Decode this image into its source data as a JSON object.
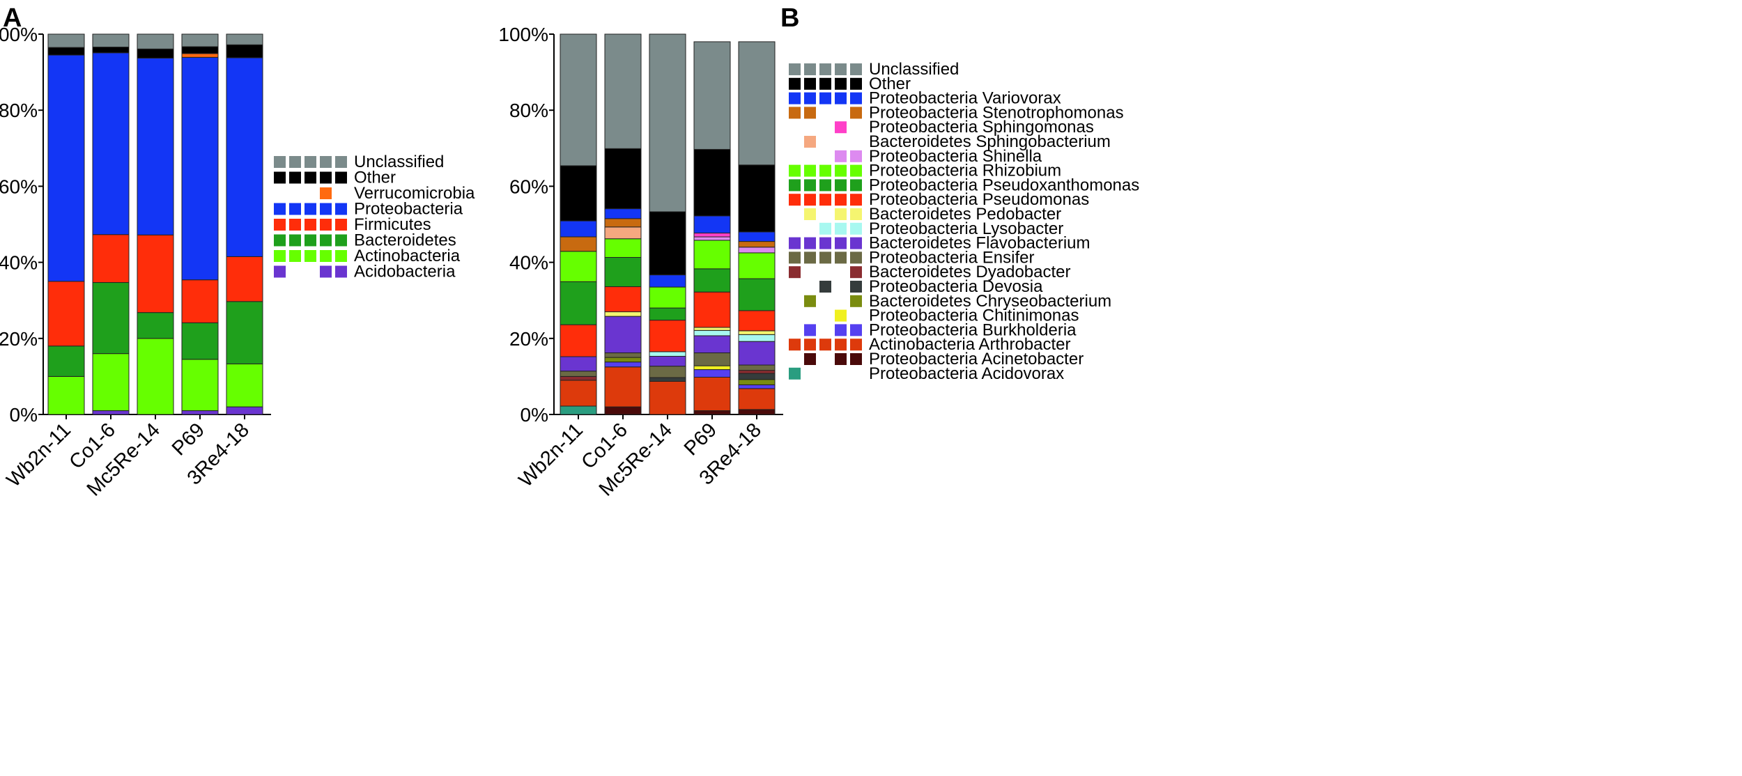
{
  "chart_data": [
    {
      "panel": "A",
      "type": "bar",
      "stacked": true,
      "title": "",
      "xlabel": "",
      "ylabel": "",
      "ylim": [
        0,
        100
      ],
      "y_ticks": [
        "0%",
        "20%",
        "40%",
        "60%",
        "80%",
        "100%"
      ],
      "categories": [
        "Wb2n-11",
        "Co1-6",
        "Mc5Re-14",
        "P69",
        "3Re4-18"
      ],
      "legend_position": "right",
      "legend_order": [
        "Unclassified",
        "Other",
        "Verrucomicrobia",
        "Proteobacteria",
        "Firmicutes",
        "Bacteroidetes",
        "Actinobacteria",
        "Acidobacteria"
      ],
      "series": [
        {
          "name": "Acidobacteria",
          "color": "#6a35d0",
          "values": [
            0,
            1,
            0,
            1,
            2
          ]
        },
        {
          "name": "Actinobacteria",
          "color": "#66ff00",
          "values": [
            10,
            15,
            20,
            13.5,
            11.3
          ]
        },
        {
          "name": "Bacteroidetes",
          "color": "#1fa01c",
          "values": [
            8,
            18.7,
            6.8,
            9.6,
            16.4
          ]
        },
        {
          "name": "Firmicutes",
          "color": "#ff2d0a",
          "values": [
            17,
            12.6,
            20.4,
            11.3,
            11.8
          ]
        },
        {
          "name": "Proteobacteria",
          "color": "#1336f5",
          "values": [
            59.5,
            47.8,
            46.5,
            58.5,
            52.3
          ]
        },
        {
          "name": "Verrucomicrobia",
          "color": "#ff6a10",
          "values": [
            0,
            0,
            0,
            1,
            0
          ]
        },
        {
          "name": "Other",
          "color": "#000000",
          "values": [
            2,
            1.5,
            2.4,
            1.8,
            3.4
          ]
        },
        {
          "name": "Unclassified",
          "color": "#7b8b8b",
          "values": [
            3.5,
            3.4,
            3.9,
            3.3,
            2.8
          ]
        }
      ]
    },
    {
      "panel": "B",
      "type": "bar",
      "stacked": true,
      "title": "",
      "xlabel": "",
      "ylabel": "",
      "ylim": [
        0,
        100
      ],
      "y_ticks": [
        "0%",
        "20%",
        "40%",
        "60%",
        "80%",
        "100%"
      ],
      "categories": [
        "Wb2n-11",
        "Co1-6",
        "Mc5Re-14",
        "P69",
        "3Re4-18"
      ],
      "legend_position": "right",
      "legend_order": [
        "Unclassified",
        "Other",
        "Proteobacteria Variovorax",
        "Proteobacteria Stenotrophomonas",
        "Proteobacteria Sphingomonas",
        "Bacteroidetes Sphingobacterium",
        "Proteobacteria Shinella",
        "Proteobacteria Rhizobium",
        "Proteobacteria Pseudoxanthomonas",
        "Proteobacteria Pseudomonas",
        "Bacteroidetes Pedobacter",
        "Proteobacteria Lysobacter",
        "Bacteroidetes Flavobacterium",
        "Proteobacteria Ensifer",
        "Bacteroidetes Dyadobacter",
        "Proteobacteria Devosia",
        "Bacteroidetes Chryseobacterium",
        "Proteobacteria Chitinimonas",
        "Proteobacteria Burkholderia",
        "Actinobacteria Arthrobacter",
        "Proteobacteria Acinetobacter",
        "Proteobacteria Acidovorax"
      ],
      "series": [
        {
          "name": "Proteobacteria Acidovorax",
          "color": "#2a9d80",
          "values": [
            2.2,
            0,
            0,
            0,
            0
          ]
        },
        {
          "name": "Proteobacteria Acinetobacter",
          "color": "#4a0a0a",
          "values": [
            0,
            2,
            0,
            1,
            1.3
          ]
        },
        {
          "name": "Actinobacteria Arthrobacter",
          "color": "#dd3a0c",
          "values": [
            6.8,
            10.5,
            8.7,
            8.8,
            5.5
          ]
        },
        {
          "name": "Proteobacteria Burkholderia",
          "color": "#5540f0",
          "values": [
            0,
            1.3,
            0,
            2,
            1
          ]
        },
        {
          "name": "Proteobacteria Chitinimonas",
          "color": "#f0f020",
          "values": [
            0,
            0,
            0,
            1,
            0
          ]
        },
        {
          "name": "Bacteroidetes Chryseobacterium",
          "color": "#7a8c10",
          "values": [
            0,
            1.2,
            0,
            0,
            1.4
          ]
        },
        {
          "name": "Proteobacteria Devosia",
          "color": "#353c3c",
          "values": [
            0,
            0,
            1,
            0,
            1.6
          ]
        },
        {
          "name": "Bacteroidetes Dyadobacter",
          "color": "#8a2c30",
          "values": [
            1,
            0,
            0,
            0,
            0.8
          ]
        },
        {
          "name": "Proteobacteria Ensifer",
          "color": "#6b6a45",
          "values": [
            1.4,
            1.2,
            3,
            3.4,
            1.4
          ]
        },
        {
          "name": "Bacteroidetes Flavobacterium",
          "color": "#6a35d0",
          "values": [
            3.8,
            9.6,
            2.6,
            4.5,
            6.2
          ]
        },
        {
          "name": "Proteobacteria Lysobacter",
          "color": "#a8f8f0",
          "values": [
            0,
            0,
            1.2,
            1.4,
            1.8
          ]
        },
        {
          "name": "Bacteroidetes Pedobacter",
          "color": "#f5f570",
          "values": [
            0,
            1.2,
            0,
            0.8,
            1
          ]
        },
        {
          "name": "Proteobacteria Pseudomonas",
          "color": "#ff2d0a",
          "values": [
            8.4,
            6.6,
            8.3,
            9.3,
            5.3
          ]
        },
        {
          "name": "Proteobacteria Pseudoxanthomonas",
          "color": "#1fa01c",
          "values": [
            11.3,
            7.7,
            3.2,
            6.1,
            8.4
          ]
        },
        {
          "name": "Proteobacteria Rhizobium",
          "color": "#66ff00",
          "values": [
            8,
            4.9,
            5.5,
            7.5,
            6.8
          ]
        },
        {
          "name": "Proteobacteria Shinella",
          "color": "#dd8af0",
          "values": [
            0,
            0,
            0,
            0.9,
            1.5
          ]
        },
        {
          "name": "Bacteroidetes Sphingobacterium",
          "color": "#f5a880",
          "values": [
            0,
            3.1,
            0,
            0,
            0
          ]
        },
        {
          "name": "Proteobacteria Sphingomonas",
          "color": "#ff40c8",
          "values": [
            0,
            0,
            0,
            1,
            0
          ]
        },
        {
          "name": "Proteobacteria Stenotrophomonas",
          "color": "#c86a10",
          "values": [
            3.8,
            2.2,
            0,
            0,
            1.5
          ]
        },
        {
          "name": "Proteobacteria Variovorax",
          "color": "#1336f5",
          "values": [
            4.2,
            2.6,
            3.2,
            4.5,
            2.5
          ]
        },
        {
          "name": "Other",
          "color": "#000000",
          "values": [
            14.5,
            15.8,
            16.6,
            17.5,
            17.6
          ]
        },
        {
          "name": "Unclassified",
          "color": "#7b8b8b",
          "values": [
            34.6,
            30.1,
            46.7,
            28.3,
            32.4
          ]
        }
      ]
    }
  ],
  "legend_presence": {
    "A": {
      "Unclassified": [
        1,
        1,
        1,
        1,
        1
      ],
      "Other": [
        1,
        1,
        1,
        1,
        1
      ],
      "Verrucomicrobia": [
        0,
        0,
        0,
        1,
        0
      ],
      "Proteobacteria": [
        1,
        1,
        1,
        1,
        1
      ],
      "Firmicutes": [
        1,
        1,
        1,
        1,
        1
      ],
      "Bacteroidetes": [
        1,
        1,
        1,
        1,
        1
      ],
      "Actinobacteria": [
        1,
        1,
        1,
        1,
        1
      ],
      "Acidobacteria": [
        1,
        0,
        0,
        1,
        1
      ]
    },
    "B": {
      "Unclassified": [
        1,
        1,
        1,
        1,
        1
      ],
      "Other": [
        1,
        1,
        1,
        1,
        1
      ],
      "Proteobacteria Variovorax": [
        1,
        1,
        1,
        1,
        1
      ],
      "Proteobacteria Stenotrophomonas": [
        1,
        1,
        0,
        0,
        1
      ],
      "Proteobacteria Sphingomonas": [
        0,
        0,
        0,
        1,
        0
      ],
      "Bacteroidetes Sphingobacterium": [
        0,
        1,
        0,
        0,
        0
      ],
      "Proteobacteria Shinella": [
        0,
        0,
        0,
        1,
        1
      ],
      "Proteobacteria Rhizobium": [
        1,
        1,
        1,
        1,
        1
      ],
      "Proteobacteria Pseudoxanthomonas": [
        1,
        1,
        1,
        1,
        1
      ],
      "Proteobacteria Pseudomonas": [
        1,
        1,
        1,
        1,
        1
      ],
      "Bacteroidetes Pedobacter": [
        0,
        1,
        0,
        1,
        1
      ],
      "Proteobacteria Lysobacter": [
        0,
        0,
        1,
        1,
        1
      ],
      "Bacteroidetes Flavobacterium": [
        1,
        1,
        1,
        1,
        1
      ],
      "Proteobacteria Ensifer": [
        1,
        1,
        1,
        1,
        1
      ],
      "Bacteroidetes Dyadobacter": [
        1,
        0,
        0,
        0,
        1
      ],
      "Proteobacteria Devosia": [
        0,
        0,
        1,
        0,
        1
      ],
      "Bacteroidetes Chryseobacterium": [
        0,
        1,
        0,
        0,
        1
      ],
      "Proteobacteria Chitinimonas": [
        0,
        0,
        0,
        1,
        0
      ],
      "Proteobacteria Burkholderia": [
        0,
        1,
        0,
        1,
        1
      ],
      "Actinobacteria Arthrobacter": [
        1,
        1,
        1,
        1,
        1
      ],
      "Proteobacteria Acinetobacter": [
        0,
        1,
        0,
        1,
        1
      ],
      "Proteobacteria Acidovorax": [
        1,
        0,
        0,
        0,
        0
      ]
    }
  }
}
